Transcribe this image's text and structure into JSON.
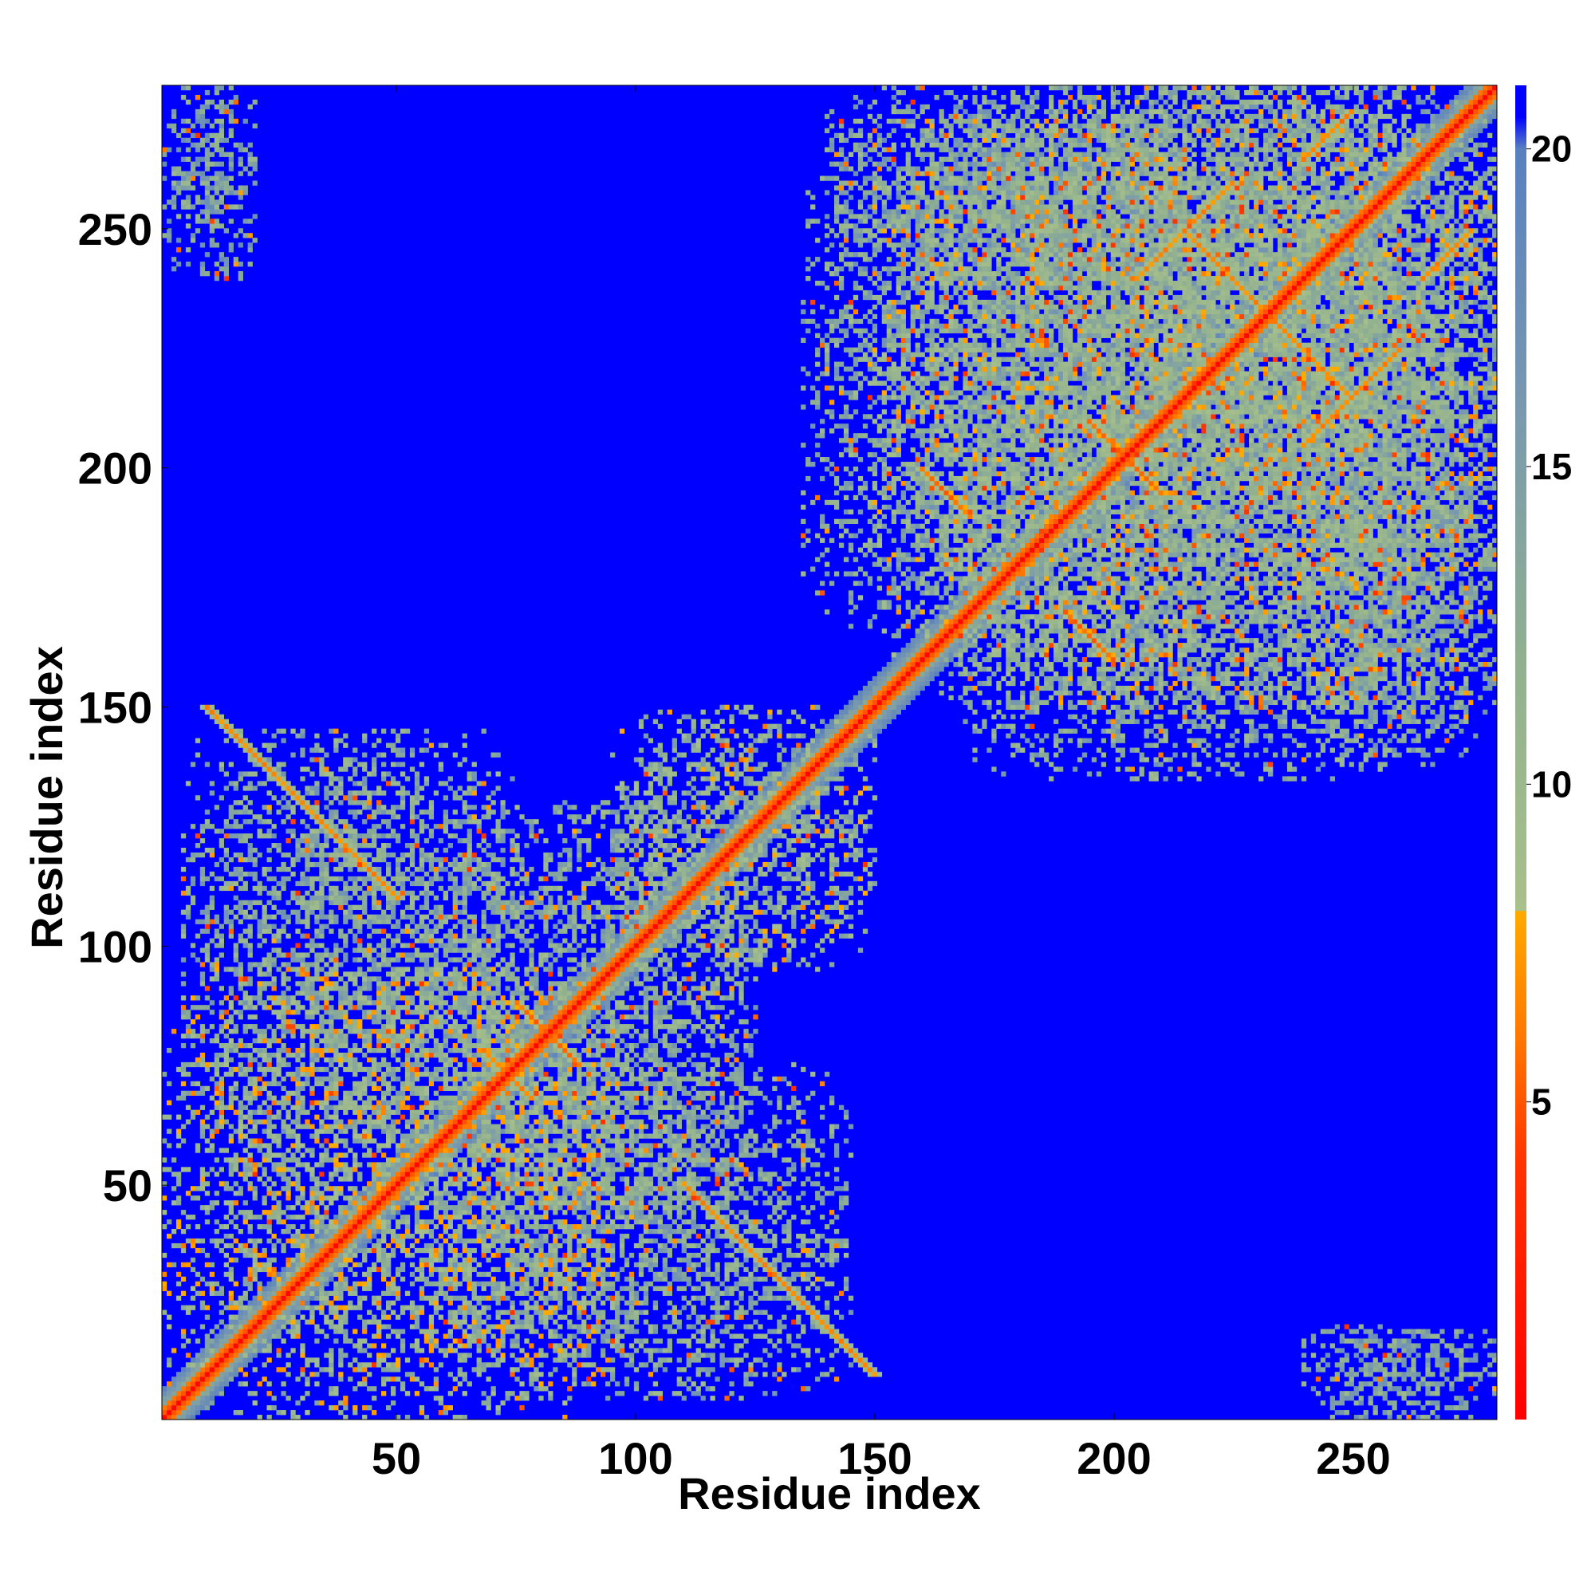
{
  "chart_data": {
    "type": "heatmap",
    "title": "",
    "xlabel": "Residue index",
    "ylabel": "Residue index",
    "n_residues": 280,
    "xlim": [
      1,
      280
    ],
    "ylim": [
      1,
      280
    ],
    "x_ticks": [
      50,
      100,
      150,
      200,
      250
    ],
    "y_ticks": [
      50,
      100,
      150,
      200,
      250
    ],
    "grid": false,
    "colorbar": {
      "position": "right",
      "range": [
        0,
        21
      ],
      "ticks": [
        5,
        10,
        15,
        20
      ],
      "stops": [
        {
          "value": 0,
          "color": "#ff0000"
        },
        {
          "value": 4,
          "color": "#ff3300"
        },
        {
          "value": 6,
          "color": "#ff7700"
        },
        {
          "value": 8,
          "color": "#ffaa00"
        },
        {
          "value": 8.01,
          "color": "#a8c08a"
        },
        {
          "value": 12,
          "color": "#90b090"
        },
        {
          "value": 16,
          "color": "#7898b0"
        },
        {
          "value": 20,
          "color": "#5880c0"
        },
        {
          "value": 20.5,
          "color": "#0000ff"
        },
        {
          "value": 21,
          "color": "#0000ff"
        }
      ]
    },
    "description_free": true,
    "diagonal": {
      "from": 1,
      "to": 280,
      "distance": 0
    },
    "contact_regions": [
      {
        "x": [
          1,
          95
        ],
        "y": [
          1,
          95
        ],
        "level": 11
      },
      {
        "x": [
          95,
          150
        ],
        "y": [
          95,
          150
        ],
        "level": 12
      },
      {
        "x": [
          150,
          280
        ],
        "y": [
          150,
          280
        ],
        "level": 12
      },
      {
        "x": [
          55,
          125
        ],
        "y": [
          45,
          130
        ],
        "level": 13
      },
      {
        "x": [
          60,
          145
        ],
        "y": [
          5,
          75
        ],
        "level": 13
      },
      {
        "x": [
          5,
          75
        ],
        "y": [
          60,
          145
        ],
        "level": 13
      },
      {
        "x": [
          135,
          215
        ],
        "y": [
          165,
          275
        ],
        "level": 13
      },
      {
        "x": [
          165,
          275
        ],
        "y": [
          135,
          215
        ],
        "level": 13
      },
      {
        "x": [
          140,
          215
        ],
        "y": [
          240,
          280
        ],
        "level": 14
      },
      {
        "x": [
          240,
          280
        ],
        "y": [
          140,
          215
        ],
        "level": 14
      },
      {
        "x": [
          1,
          20
        ],
        "y": [
          240,
          280
        ],
        "level": 14
      },
      {
        "x": [
          240,
          280
        ],
        "y": [
          1,
          20
        ],
        "level": 14
      },
      {
        "x": [
          200,
          280
        ],
        "y": [
          180,
          280
        ],
        "level": 13
      },
      {
        "x": [
          180,
          280
        ],
        "y": [
          200,
          280
        ],
        "level": 13
      }
    ],
    "strands": [
      {
        "from": [
          75,
          88
        ],
        "to": [
          88,
          75
        ],
        "level": 5
      },
      {
        "from": [
          68,
          78
        ],
        "to": [
          78,
          68
        ],
        "level": 6
      },
      {
        "from": [
          195,
          210
        ],
        "to": [
          210,
          195
        ],
        "level": 5
      },
      {
        "from": [
          160,
          200
        ],
        "to": [
          170,
          190
        ],
        "level": 5
      },
      {
        "from": [
          190,
          170
        ],
        "to": [
          200,
          160
        ],
        "level": 5
      },
      {
        "from": [
          215,
          250
        ],
        "to": [
          235,
          230
        ],
        "level": 6
      },
      {
        "from": [
          230,
          235
        ],
        "to": [
          250,
          215
        ],
        "level": 6
      },
      {
        "from": [
          240,
          205
        ],
        "to": [
          260,
          225
        ],
        "level": 6
      },
      {
        "from": [
          205,
          240
        ],
        "to": [
          225,
          260
        ],
        "level": 6
      },
      {
        "from": [
          10,
          150
        ],
        "to": [
          50,
          110
        ],
        "level": 6
      },
      {
        "from": [
          110,
          50
        ],
        "to": [
          150,
          10
        ],
        "level": 6
      },
      {
        "from": [
          240,
          265
        ],
        "to": [
          250,
          275
        ],
        "level": 6
      },
      {
        "from": [
          265,
          240
        ],
        "to": [
          275,
          250
        ],
        "level": 6
      }
    ]
  }
}
